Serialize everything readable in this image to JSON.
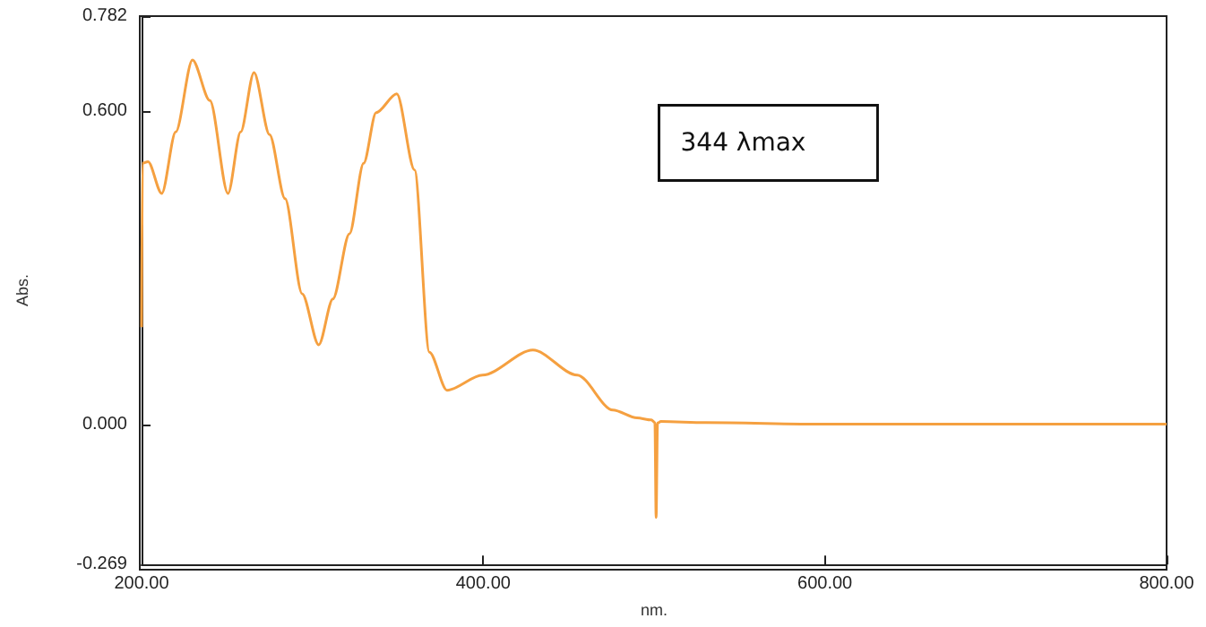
{
  "chart_data": {
    "type": "line",
    "xlabel": "nm.",
    "ylabel": "Abs.",
    "annotations": [
      "344 λmax"
    ],
    "xlim": [
      200,
      800
    ],
    "xticks": [
      {
        "value": 200,
        "label": "200.00"
      },
      {
        "value": 400,
        "label": "400.00"
      },
      {
        "value": 600,
        "label": "600.00"
      },
      {
        "value": 800,
        "label": "800.00"
      }
    ],
    "ylim": [
      -0.269,
      0.782
    ],
    "yticks": [
      {
        "value": -0.269,
        "label": "-0.269"
      },
      {
        "value": 0,
        "label": "0.000"
      },
      {
        "value": 0.6,
        "label": "0.600"
      },
      {
        "value": 0.782,
        "label": "0.782"
      }
    ],
    "grid": false,
    "series": [
      {
        "color": "#f5a040",
        "x": [
          200,
          200.5,
          203.8,
          211.8,
          220,
          229.8,
          240,
          250.6,
          258,
          265.8,
          274.9,
          284,
          294,
          303.7,
          312,
          321.7,
          330,
          337.3,
          349.4,
          359.8,
          368.5,
          378.8,
          399.6,
          429.1,
          455,
          475.9,
          490,
          498.4,
          500.5,
          501.2,
          502,
          504,
          530,
          600,
          700,
          800
        ],
        "values": [
          0.186,
          0.5,
          0.503,
          0.442,
          0.56,
          0.698,
          0.62,
          0.442,
          0.56,
          0.674,
          0.555,
          0.432,
          0.25,
          0.152,
          0.24,
          0.365,
          0.5,
          0.597,
          0.633,
          0.487,
          0.138,
          0.065,
          0.094,
          0.142,
          0.094,
          0.027,
          0.012,
          0.008,
          0.003,
          -0.179,
          0.002,
          0.005,
          0.003,
          0,
          0,
          0
        ]
      }
    ]
  }
}
